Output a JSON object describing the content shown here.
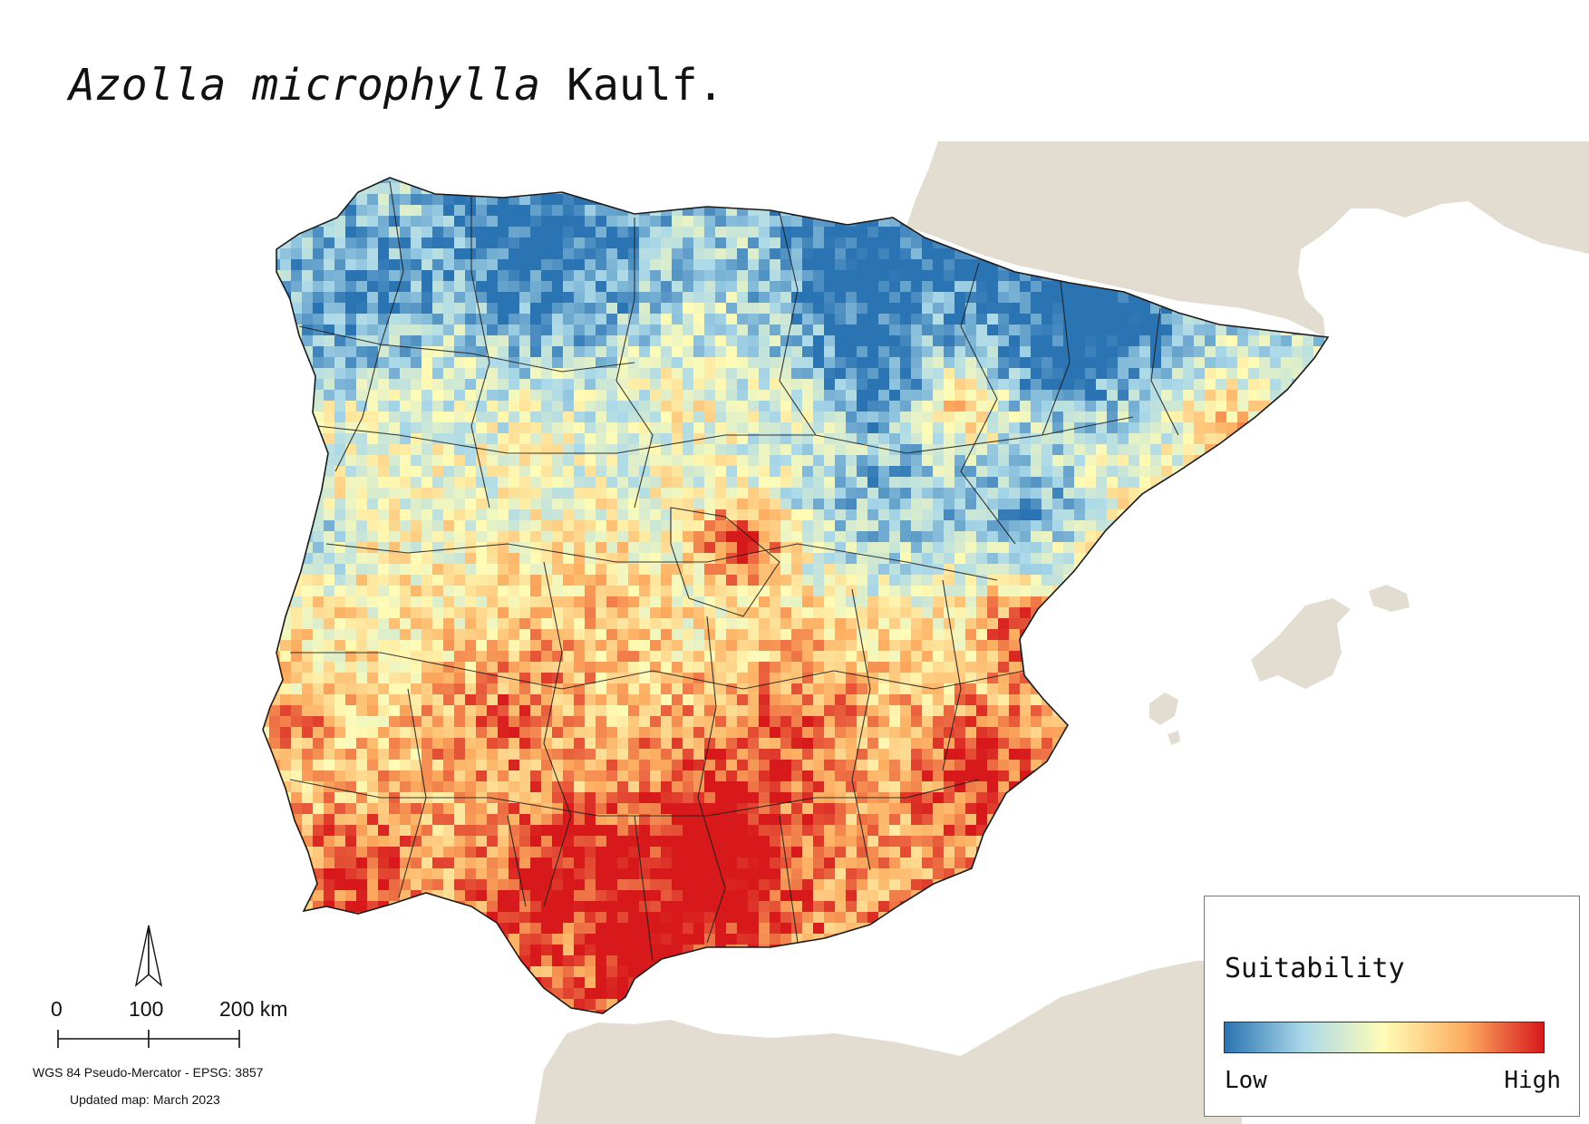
{
  "map": {
    "title_italic": "Azolla microphylla",
    "title_rest": "Kaulf.",
    "colors": {
      "background": "#ffffff",
      "land_context": "#e2ddd0",
      "boundary": "#1a1a1a",
      "low": "#2b74b3",
      "mid": "#fffcb6",
      "high": "#d7191c"
    },
    "layers": [
      "suitability-raster",
      "province-boundaries",
      "surrounding-land"
    ],
    "north_arrow_icon": "north-arrow-icon"
  },
  "scale_bar": {
    "labels": [
      "0",
      "100",
      "200 km"
    ],
    "unit": "km"
  },
  "crs_text": "WGS 84 Pseudo-Mercator  - EPSG: 3857",
  "updated_text": "Updated map: March 2023",
  "legend": {
    "title": "Suitability",
    "low_label": "Low",
    "high_label": "High",
    "ramp_colors": [
      "#2b74b3",
      "#abd9e9",
      "#fffcb6",
      "#fdae61",
      "#d7191c"
    ]
  }
}
